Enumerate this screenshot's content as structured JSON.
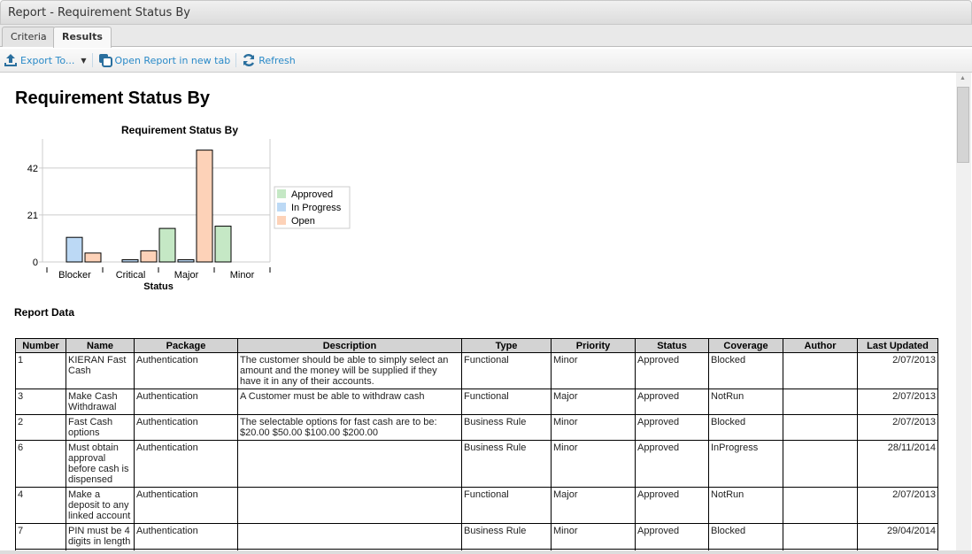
{
  "window": {
    "title": "Report - Requirement Status By"
  },
  "tabs": [
    {
      "label": "Criteria",
      "active": false
    },
    {
      "label": "Results",
      "active": true
    }
  ],
  "toolbar": {
    "export": "Export To...",
    "open_new_tab": "Open Report in new tab",
    "refresh": "Refresh",
    "accent": "#2a8ac8"
  },
  "report": {
    "title": "Requirement Status By",
    "data_heading": "Report Data"
  },
  "chart_data": {
    "type": "bar",
    "title": "Requirement Status By",
    "xlabel": "Status",
    "ylabel": "",
    "categories": [
      "Blocker",
      "Critical",
      "Major",
      "Minor"
    ],
    "yticks": [
      0,
      21,
      42
    ],
    "ylim": [
      0,
      55
    ],
    "grid": true,
    "legend": "right",
    "series": [
      {
        "name": "Approved",
        "color": "#c5e8c5",
        "values": [
          0,
          0,
          15,
          16
        ]
      },
      {
        "name": "In Progress",
        "color": "#bcd9f5",
        "values": [
          11,
          1,
          1,
          0
        ]
      },
      {
        "name": "Open",
        "color": "#fdd2b8",
        "values": [
          4,
          5,
          50,
          0
        ]
      }
    ]
  },
  "table": {
    "headers": [
      "Number",
      "Name",
      "Package",
      "Description",
      "Type",
      "Priority",
      "Status",
      "Coverage",
      "Author",
      "Last Updated"
    ],
    "rows": [
      [
        "1",
        "KIERAN Fast Cash",
        "Authentication",
        "The customer should be able to simply select an amount and the money will be supplied if they have it in any of their accounts.",
        "Functional",
        "Minor",
        "Approved",
        "Blocked",
        "",
        "2/07/2013"
      ],
      [
        "3",
        "Make Cash Withdrawal",
        "Authentication",
        "A Customer must be able to withdraw cash",
        "Functional",
        "Major",
        "Approved",
        "NotRun",
        "",
        "2/07/2013"
      ],
      [
        "2",
        "Fast Cash options",
        "Authentication",
        "The selectable options for fast cash are to be: $20.00 $50.00 $100.00 $200.00",
        "Business Rule",
        "Minor",
        "Approved",
        "Blocked",
        "",
        "2/07/2013"
      ],
      [
        "6",
        "Must obtain approval before cash is dispensed",
        "Authentication",
        "",
        "Business Rule",
        "Minor",
        "Approved",
        "InProgress",
        "",
        "28/11/2014"
      ],
      [
        "4",
        "Make a deposit to any linked account",
        "Authentication",
        "",
        "Functional",
        "Major",
        "Approved",
        "NotRun",
        "",
        "2/07/2013"
      ],
      [
        "7",
        "PIN must be 4 digits in length",
        "Authentication",
        "",
        "Business Rule",
        "Minor",
        "Approved",
        "Blocked",
        "",
        "29/04/2014"
      ]
    ]
  }
}
